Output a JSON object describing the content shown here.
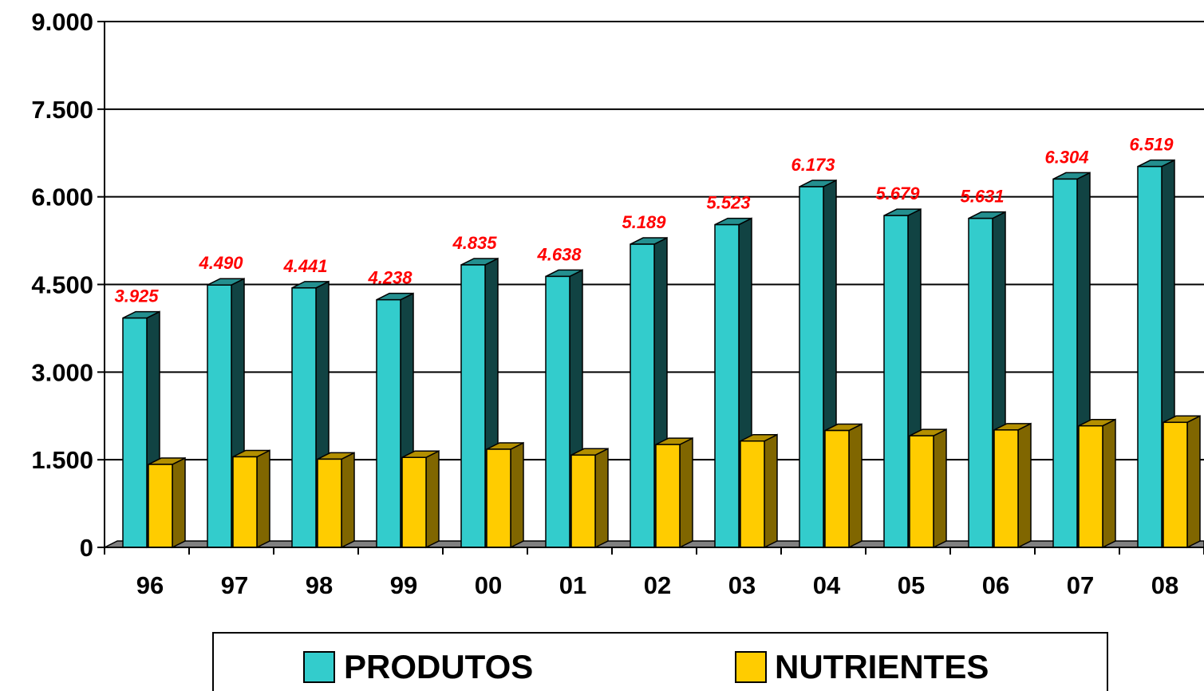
{
  "chart_data": {
    "type": "bar",
    "style": "3d-clustered-column",
    "categories": [
      "96",
      "97",
      "98",
      "99",
      "00",
      "01",
      "02",
      "03",
      "04",
      "05",
      "06",
      "07",
      "08"
    ],
    "series": [
      {
        "name": "PRODUTOS",
        "color": "#33CCCC",
        "values": [
          3925,
          4490,
          4441,
          4238,
          4835,
          4638,
          5189,
          5523,
          6173,
          5679,
          5631,
          6304,
          6519
        ],
        "data_labels": [
          "3.925",
          "4.490",
          "4.441",
          "4.238",
          "4.835",
          "4.638",
          "5.189",
          "5.523",
          "6.173",
          "5.679",
          "5.631",
          "6.304",
          "6.519"
        ]
      },
      {
        "name": "NUTRIENTES",
        "color": "#FFCC00",
        "values": [
          1420,
          1550,
          1510,
          1540,
          1680,
          1580,
          1760,
          1820,
          2000,
          1910,
          2010,
          2080,
          2140
        ]
      }
    ],
    "ylim": [
      0,
      9000
    ],
    "yticks": [
      0,
      1500,
      3000,
      4500,
      6000,
      7500,
      9000
    ],
    "ytick_labels": [
      "0",
      "1.500",
      "3.000",
      "4.500",
      "6.000",
      "7.500",
      "9.000"
    ],
    "grid": true,
    "legend_position": "bottom",
    "data_label_color": "#FF0000",
    "xlabel": "",
    "ylabel": "",
    "title": ""
  }
}
